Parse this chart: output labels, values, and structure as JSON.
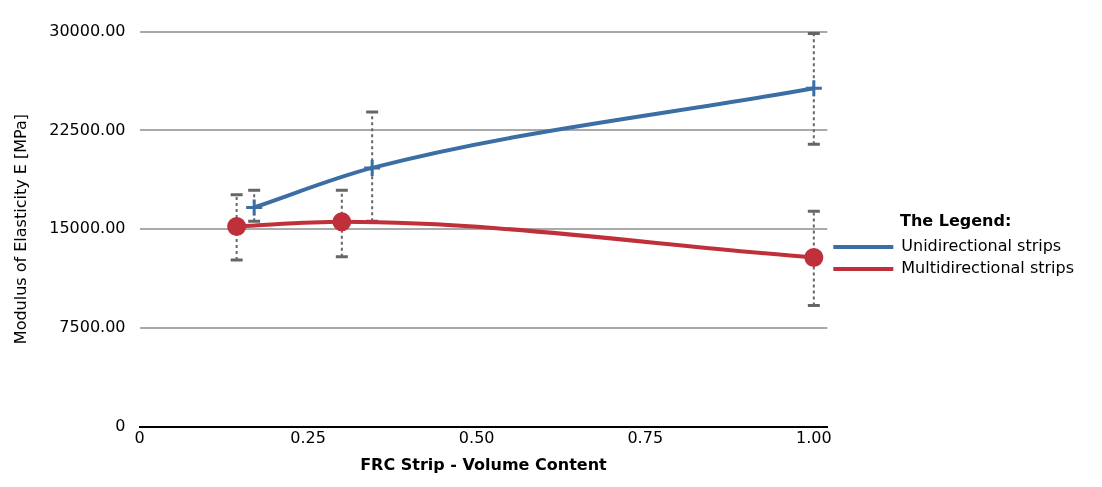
{
  "chart_data": {
    "type": "line",
    "xlabel": "FRC Strip - Volume Content",
    "ylabel": "Modulus of Elasticity E [MPa]",
    "legend_title": "The Legend:",
    "legend": "right",
    "grid": "y",
    "line_style": "solid",
    "xlim": [
      0,
      1.02
    ],
    "xticks": [
      0,
      {
        "value": 0.25,
        "label": "0.25"
      },
      {
        "value": 0.5,
        "label": "0.50"
      },
      {
        "value": 0.75,
        "label": "0.75"
      },
      {
        "value": 1,
        "label": "1.00"
      }
    ],
    "ylim": [
      0,
      30000
    ],
    "yticks": [
      0,
      {
        "value": 7500,
        "label": "7500.00"
      },
      {
        "value": 15000,
        "label": "15000.00"
      },
      {
        "value": 22500,
        "label": "22500.00"
      },
      {
        "value": 30000,
        "label": "30000.00"
      }
    ],
    "series": [
      {
        "name": "Unidirectional strips",
        "color": "#3a6ea5",
        "marker": "cross",
        "x": [
          0.17,
          0.345,
          1.0
        ],
        "values": [
          16650,
          19650,
          25700
        ],
        "errors": [
          [
            15600,
            17950
          ],
          [
            15600,
            23900
          ],
          [
            21450,
            29850
          ]
        ]
      },
      {
        "name": "Multidirectional strips",
        "color": "#c0303a",
        "marker": "circle",
        "x": [
          0.144,
          0.3,
          1.0
        ],
        "values": [
          15200,
          15550,
          12850
        ],
        "errors": [
          [
            12650,
            17600
          ],
          [
            12900,
            17950
          ],
          [
            9200,
            16350
          ]
        ]
      }
    ]
  }
}
